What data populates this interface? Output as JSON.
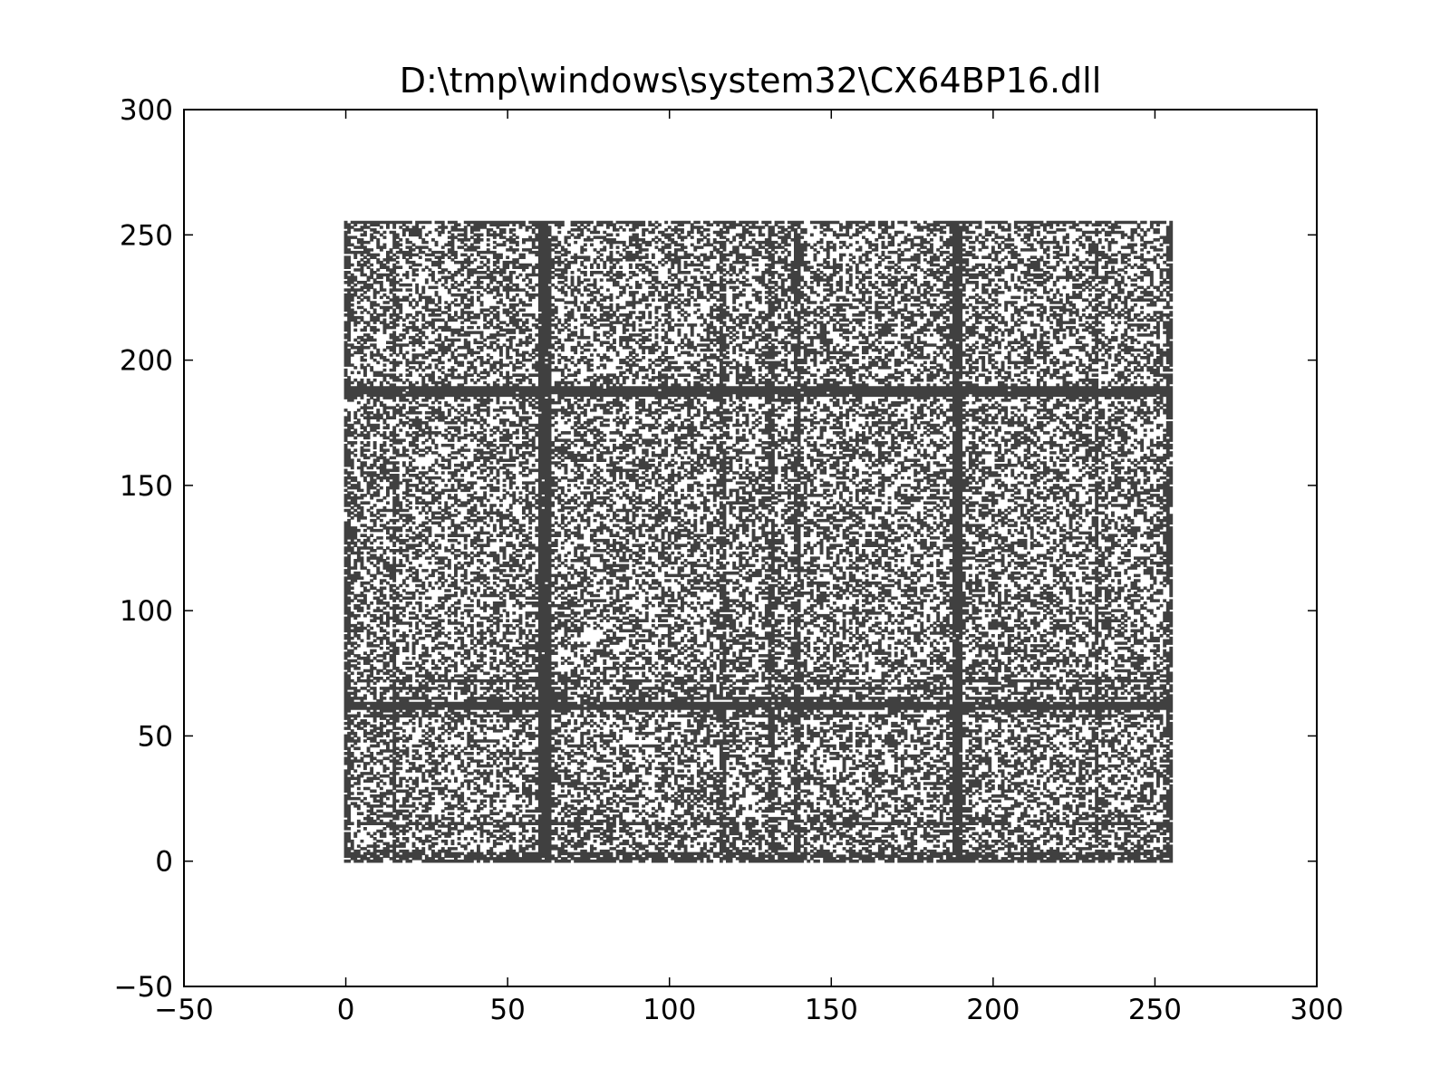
{
  "chart_data": {
    "type": "scatter",
    "title": "D:\\tmp\\windows\\system32\\CX64BP16.dll",
    "xlabel": "",
    "ylabel": "",
    "xlim": [
      -50,
      300
    ],
    "ylim": [
      -50,
      300
    ],
    "xticks": [
      "−50",
      "0",
      "50",
      "100",
      "150",
      "200",
      "250",
      "300"
    ],
    "yticks": [
      "−50",
      "0",
      "50",
      "100",
      "150",
      "200",
      "250",
      "300"
    ],
    "xtick_values": [
      -50,
      0,
      50,
      100,
      150,
      200,
      250,
      300
    ],
    "ytick_values": [
      -50,
      0,
      50,
      100,
      150,
      200,
      250,
      300
    ],
    "grid": false,
    "legend": "none",
    "point_color": "#000000",
    "point_domain": {
      "x": [
        0,
        255
      ],
      "y": [
        0,
        255
      ]
    },
    "dense_columns_x": [
      60,
      61,
      62,
      63,
      188,
      189,
      190
    ],
    "dense_rows_y": [
      61,
      62,
      63,
      186,
      187,
      188,
      189
    ],
    "medium_columns_x": [
      0,
      1,
      15,
      116,
      117,
      131,
      132,
      139,
      140,
      232,
      254,
      255
    ],
    "medium_rows_y": [
      0,
      1,
      2,
      3,
      15,
      58,
      65,
      69,
      72,
      255
    ]
  }
}
